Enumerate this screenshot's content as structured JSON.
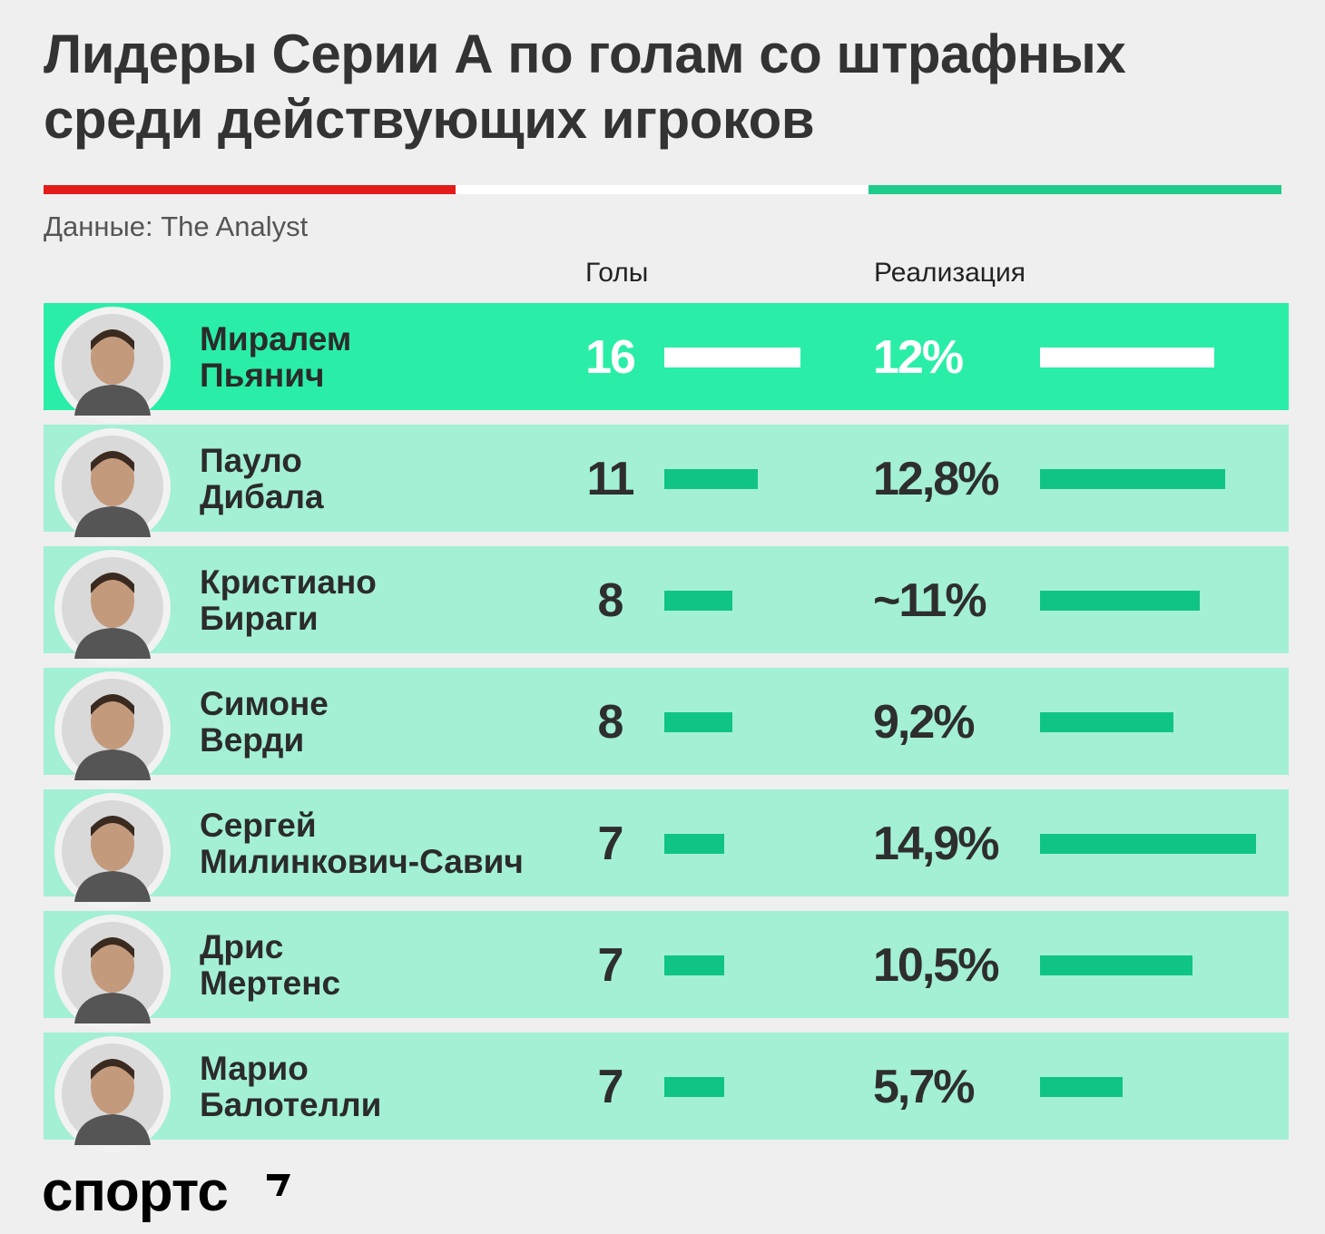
{
  "title_line1": "Лидеры Серии А по голам со штрафных",
  "title_line2": "среди действующих игроков",
  "source": "Данные: The Analyst",
  "colors": {
    "flag_red": "#e41b1b",
    "flag_white": "#ffffff",
    "flag_green": "#1ecb8a",
    "leader_row": "#2aeea7",
    "row": "#a3f0d4",
    "bar": "#10c486"
  },
  "chart_data": {
    "type": "table",
    "columns": [
      "Голы",
      "Реализация"
    ],
    "rows": [
      {
        "first": "Миралем",
        "last": "Пьянич",
        "goals": 16,
        "goals_label": "16",
        "pct": 12,
        "pct_label": "12%",
        "avatar_icon": "player-photo-icon"
      },
      {
        "first": "Пауло",
        "last": "Дибала",
        "goals": 11,
        "goals_label": "11",
        "pct": 12.8,
        "pct_label": "12,8%",
        "avatar_icon": "player-photo-icon"
      },
      {
        "first": "Кристиано",
        "last": "Бираги",
        "goals": 8,
        "goals_label": "8",
        "pct": 11,
        "pct_label": "~11%",
        "avatar_icon": "player-photo-icon"
      },
      {
        "first": "Симоне",
        "last": "Верди",
        "goals": 8,
        "goals_label": "8",
        "pct": 9.2,
        "pct_label": "9,2%",
        "avatar_icon": "player-photo-icon"
      },
      {
        "first": "Сергей",
        "last": "Милинкович-Савич",
        "goals": 7,
        "goals_label": "7",
        "pct": 14.9,
        "pct_label": "14,9%",
        "avatar_icon": "player-photo-icon"
      },
      {
        "first": "Дрис",
        "last": "Мертенс",
        "goals": 7,
        "goals_label": "7",
        "pct": 10.5,
        "pct_label": "10,5%",
        "avatar_icon": "player-photo-icon"
      },
      {
        "first": "Марио",
        "last": "Балотелли",
        "goals": 7,
        "goals_label": "7",
        "pct": 5.7,
        "pct_label": "5,7%",
        "avatar_icon": "player-photo-icon"
      }
    ]
  },
  "logo": "спортс"
}
